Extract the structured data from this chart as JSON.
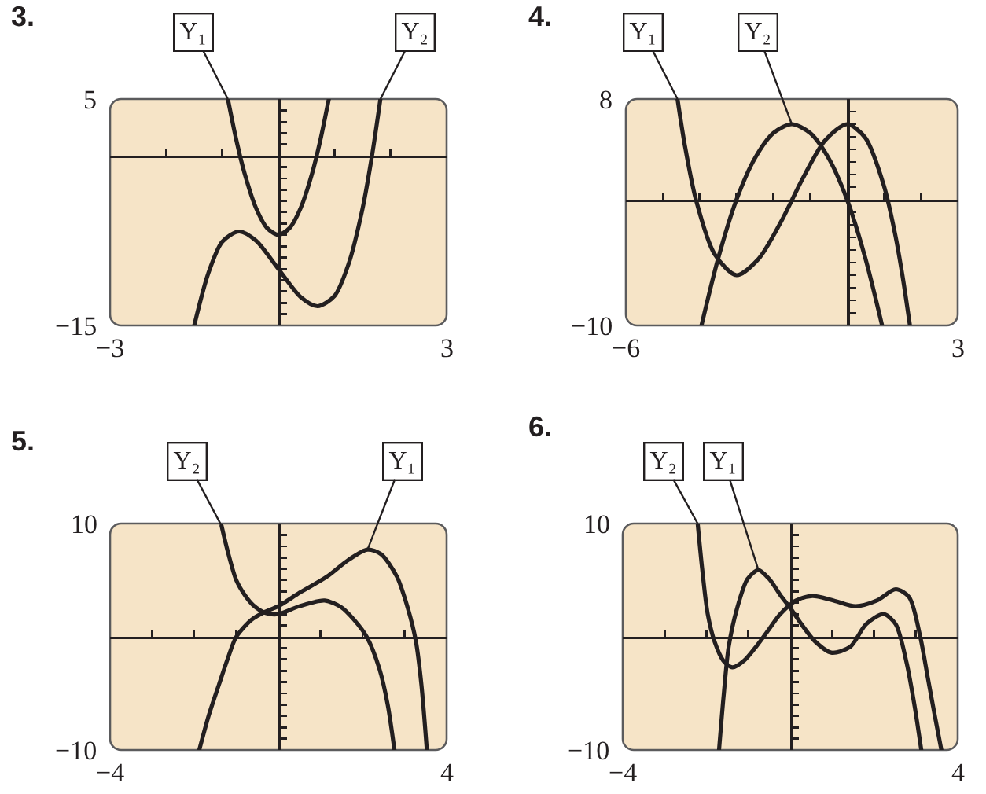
{
  "chart_data": [
    {
      "type": "line",
      "title": "3.",
      "xlim": [
        -3,
        3
      ],
      "ylim": [
        -15,
        5
      ],
      "xticks": [
        {
          "value": -3,
          "label": "−3"
        },
        {
          "value": -2,
          "label": null
        },
        {
          "value": -1,
          "label": null
        },
        {
          "value": 1,
          "label": null
        },
        {
          "value": 2,
          "label": null
        },
        {
          "value": 3,
          "label": "3"
        }
      ],
      "yticks": [
        {
          "value": -15,
          "label": "−15"
        },
        {
          "value": -14,
          "label": null
        },
        {
          "value": -13,
          "label": null
        },
        {
          "value": -12,
          "label": null
        },
        {
          "value": -11,
          "label": null
        },
        {
          "value": -10,
          "label": null
        },
        {
          "value": -9,
          "label": null
        },
        {
          "value": -8,
          "label": null
        },
        {
          "value": -7,
          "label": null
        },
        {
          "value": -6,
          "label": null
        },
        {
          "value": -5,
          "label": null
        },
        {
          "value": -4,
          "label": null
        },
        {
          "value": -3,
          "label": null
        },
        {
          "value": -2,
          "label": null
        },
        {
          "value": -1,
          "label": null
        },
        {
          "value": 1,
          "label": null
        },
        {
          "value": 2,
          "label": null
        },
        {
          "value": 3,
          "label": null
        },
        {
          "value": 4,
          "label": null
        },
        5
      ],
      "series": [
        {
          "name": "Y₁",
          "color": "#231f20",
          "x": [
            -0.9,
            -0.75,
            -0.6,
            -0.4,
            -0.2,
            0,
            0.2,
            0.4,
            0.6,
            0.75,
            0.9
          ],
          "values": [
            5,
            1.4,
            -1.6,
            -4.6,
            -6.4,
            -7,
            -6.4,
            -4.6,
            -1.6,
            1.4,
            5
          ]
        },
        {
          "name": "Y₂",
          "color": "#231f20",
          "x": [
            -1.5,
            -1.25,
            -1,
            -0.7,
            -0.4,
            0,
            0.4,
            0.7,
            1,
            1.25,
            1.5,
            1.67,
            1.82
          ],
          "values": [
            -15,
            -10.4,
            -7.6,
            -6.7,
            -7.5,
            -10,
            -12.5,
            -13.3,
            -12.4,
            -9.6,
            -4.7,
            0,
            5
          ]
        }
      ]
    },
    {
      "type": "line",
      "title": "4.",
      "xlim": [
        -6,
        3
      ],
      "ylim": [
        -10,
        8
      ],
      "xticks": [
        {
          "value": -6,
          "label": "−6"
        },
        {
          "value": -5,
          "label": null
        },
        {
          "value": -4,
          "label": null
        },
        {
          "value": -3,
          "label": null
        },
        {
          "value": -2,
          "label": null
        },
        {
          "value": -1,
          "label": null
        },
        {
          "value": 1,
          "label": null
        },
        {
          "value": 2,
          "label": null
        },
        {
          "value": 3,
          "label": "3"
        }
      ],
      "yticks": [
        {
          "value": -10,
          "label": "−10"
        },
        {
          "value": -9,
          "label": null
        },
        {
          "value": -8,
          "label": null
        },
        {
          "value": -7,
          "label": null
        },
        {
          "value": -6,
          "label": null
        },
        {
          "value": -5,
          "label": null
        },
        {
          "value": -4,
          "label": null
        },
        {
          "value": -3,
          "label": null
        },
        {
          "value": -2,
          "label": null
        },
        {
          "value": -1,
          "label": null
        },
        {
          "value": 1,
          "label": null
        },
        {
          "value": 2,
          "label": null
        },
        {
          "value": 3,
          "label": null
        },
        {
          "value": 4,
          "label": null
        },
        {
          "value": 5,
          "label": null
        },
        {
          "value": 6,
          "label": null
        },
        {
          "value": 7,
          "label": null
        },
        8
      ],
      "series": [
        {
          "name": "Y₁",
          "color": "#231f20",
          "x": [
            -4.6,
            -4.4,
            -4.1,
            -3.6,
            -3,
            -2.4,
            -1.8,
            -1.2,
            -0.6,
            0,
            0.5,
            1,
            1.3,
            1.5,
            1.7
          ],
          "values": [
            8,
            4.3,
            0,
            -4.3,
            -6,
            -4.7,
            -1.8,
            1.7,
            4.7,
            6,
            4.9,
            1.1,
            -2.7,
            -6,
            -9.9
          ]
        },
        {
          "name": "Y₂",
          "color": "#231f20",
          "x": [
            -3.95,
            -3.5,
            -3,
            -2.5,
            -2,
            -1.5,
            -1,
            -0.5,
            0,
            0.5,
            0.95
          ],
          "values": [
            -10,
            -4.7,
            0,
            3.3,
            5.3,
            6,
            5.3,
            3.3,
            0,
            -4.7,
            -10
          ]
        }
      ]
    },
    {
      "type": "line",
      "title": "5.",
      "xlim": [
        -4,
        4
      ],
      "ylim": [
        -10,
        10
      ],
      "xticks": [
        {
          "value": -4,
          "label": "−4"
        },
        {
          "value": -3,
          "label": null
        },
        {
          "value": -2,
          "label": null
        },
        {
          "value": -1,
          "label": null
        },
        {
          "value": 1,
          "label": null
        },
        {
          "value": 2,
          "label": null
        },
        {
          "value": 3,
          "label": null
        },
        {
          "value": 4,
          "label": "4"
        }
      ],
      "yticks": [
        {
          "value": -10,
          "label": "−10"
        },
        {
          "value": -9,
          "label": null
        },
        {
          "value": -8,
          "label": null
        },
        {
          "value": -7,
          "label": null
        },
        {
          "value": -6,
          "label": null
        },
        {
          "value": -5,
          "label": null
        },
        {
          "value": -4,
          "label": null
        },
        {
          "value": -3,
          "label": null
        },
        {
          "value": -2,
          "label": null
        },
        {
          "value": -1,
          "label": null
        },
        {
          "value": 1,
          "label": null
        },
        {
          "value": 2,
          "label": null
        },
        {
          "value": 3,
          "label": null
        },
        {
          "value": 4,
          "label": null
        },
        {
          "value": 5,
          "label": null
        },
        {
          "value": 6,
          "label": null
        },
        {
          "value": 7,
          "label": null
        },
        {
          "value": 8,
          "label": null
        },
        {
          "value": 9,
          "label": null
        },
        10
      ],
      "series": [
        {
          "name": "Y₂",
          "color": "#231f20",
          "x": [
            -1.35,
            -1.2,
            -1,
            -0.8,
            -0.6,
            -0.3,
            0,
            0.5,
            1.1,
            1.5,
            1.8,
            2.1,
            2.4,
            2.6,
            2.76
          ],
          "values": [
            9.8,
            7.5,
            5,
            3.7,
            2.8,
            2.1,
            2,
            2.7,
            3.2,
            2.6,
            1.5,
            0,
            -2.8,
            -6,
            -10
          ]
        },
        {
          "name": "Y₁",
          "color": "#231f20",
          "x": [
            -1.88,
            -1.65,
            -1.41,
            -1.2,
            -1,
            -0.64,
            -0.32,
            0,
            0.51,
            1.15,
            1.67,
            2.12,
            2.44,
            2.82,
            3.08,
            3.27,
            3.4,
            3.53
          ],
          "values": [
            -10,
            -6.9,
            -4.2,
            -1.9,
            0,
            1.5,
            2.2,
            2.7,
            3.9,
            5.3,
            6.8,
            7.7,
            7.3,
            5.3,
            2.5,
            -0.4,
            -4.2,
            -10
          ]
        }
      ]
    },
    {
      "type": "line",
      "title": "6.",
      "xlim": [
        -4,
        4
      ],
      "ylim": [
        -10,
        10
      ],
      "xticks": [
        {
          "value": -4,
          "label": "−4"
        },
        {
          "value": -3,
          "label": null
        },
        {
          "value": -2,
          "label": null
        },
        {
          "value": -1,
          "label": null
        },
        {
          "value": 1,
          "label": null
        },
        {
          "value": 2,
          "label": null
        },
        {
          "value": 3,
          "label": null
        },
        {
          "value": 4,
          "label": "4"
        }
      ],
      "yticks": [
        {
          "value": -10,
          "label": "−10"
        },
        {
          "value": -9,
          "label": null
        },
        {
          "value": -8,
          "label": null
        },
        {
          "value": -7,
          "label": null
        },
        {
          "value": -6,
          "label": null
        },
        {
          "value": -5,
          "label": null
        },
        {
          "value": -4,
          "label": null
        },
        {
          "value": -3,
          "label": null
        },
        {
          "value": -2,
          "label": null
        },
        {
          "value": -1,
          "label": null
        },
        {
          "value": 1,
          "label": null
        },
        {
          "value": 2,
          "label": null
        },
        {
          "value": 3,
          "label": null
        },
        {
          "value": 4,
          "label": null
        },
        {
          "value": 5,
          "label": null
        },
        {
          "value": 6,
          "label": null
        },
        {
          "value": 7,
          "label": null
        },
        {
          "value": 8,
          "label": null
        },
        {
          "value": 9,
          "label": null
        },
        10
      ],
      "series": [
        {
          "name": "Y₂",
          "color": "#231f20",
          "x": [
            -2.21,
            -2.1,
            -1.97,
            -1.8,
            -1.6,
            -1.38,
            -1.1,
            -0.8,
            -0.5,
            -0.24,
            0.14,
            0.53,
            1.04,
            1.56,
            2.07,
            2.52,
            2.84,
            3.1,
            3.29,
            3.46,
            3.61
          ],
          "values": [
            10,
            5.9,
            2,
            -0.5,
            -2.1,
            -2.7,
            -2.1,
            -0.8,
            0.7,
            2,
            3.2,
            3.6,
            3.2,
            2.7,
            3.2,
            4.2,
            3.5,
            0.1,
            -3.7,
            -7.1,
            -10
          ]
        },
        {
          "name": "Y₁",
          "color": "#231f20",
          "x": [
            -1.7,
            -1.59,
            -1.47,
            -1.27,
            -1.02,
            -0.76,
            -0.5,
            -0.24,
            0.01,
            0.27,
            0.59,
            0.98,
            1.43,
            1.81,
            2.23,
            2.52,
            2.78,
            2.97,
            3.13
          ],
          "values": [
            -10,
            -5.2,
            -0.9,
            2.5,
            5.1,
            5.9,
            5.1,
            3.7,
            2.5,
            1.1,
            -0.4,
            -1.4,
            -0.9,
            1.1,
            2,
            1.1,
            -2.3,
            -6.1,
            -10
          ]
        }
      ]
    }
  ]
}
